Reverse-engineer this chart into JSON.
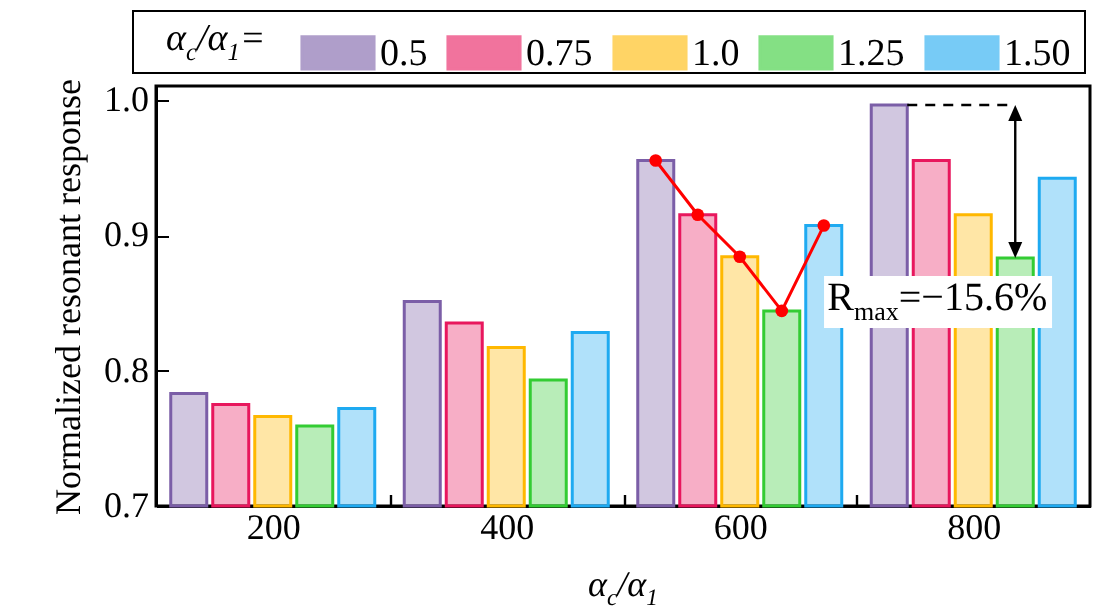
{
  "chart_data": {
    "type": "bar",
    "x": [
      200,
      400,
      600,
      800
    ],
    "xlim": [
      100,
      900
    ],
    "xticks": [
      200,
      400,
      600,
      800,
      {
        "value": 300,
        "label": null
      },
      {
        "value": 500,
        "label": null
      },
      {
        "value": 700,
        "label": null
      }
    ],
    "xlabel": "α$_{c}$/α$_{1}$",
    "ylabel": "Normalized resonant response",
    "legend_title": "α$_{c}$/α$_{1}$=",
    "legend": "top",
    "series": [
      {
        "name": "0.5",
        "color": "#7b5ea7",
        "values": [
          0.783,
          0.851,
          0.955,
          0.996
        ]
      },
      {
        "name": "0.75",
        "color": "#e8175d",
        "values": [
          0.775,
          0.835,
          0.915,
          0.955
        ]
      },
      {
        "name": "1.0",
        "color": "#ffb800",
        "values": [
          0.766,
          0.817,
          0.884,
          0.915
        ]
      },
      {
        "name": "1.25",
        "color": "#33cc33",
        "values": [
          0.759,
          0.793,
          0.844,
          0.883
        ]
      },
      {
        "name": "1.50",
        "color": "#1eaaf1",
        "values": [
          0.772,
          0.828,
          0.907,
          0.942
        ]
      },
      {
        "type": "line",
        "color": "#ff0000",
        "marker": "circle",
        "x": [
          528,
          564,
          600,
          636,
          672
        ],
        "values": [
          0.955,
          0.915,
          0.884,
          0.844,
          0.907
        ]
      }
    ],
    "ylim": [
      0.7,
      1.01
    ],
    "yticks": [
      0.7,
      0.8,
      0.9,
      {
        "value": 1.0,
        "label": "1.0"
      }
    ],
    "grid": false,
    "annotations": [
      "R$_{max}$=−15.6%"
    ]
  }
}
